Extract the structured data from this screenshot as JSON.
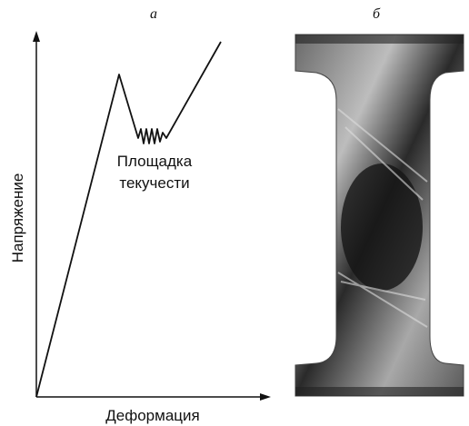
{
  "panels": [
    {
      "label": "а",
      "y_axis_label": "Напряжение",
      "x_axis_label": "Деформация",
      "annotation": [
        "Площадка",
        "текучести"
      ]
    },
    {
      "label": "б"
    }
  ]
}
